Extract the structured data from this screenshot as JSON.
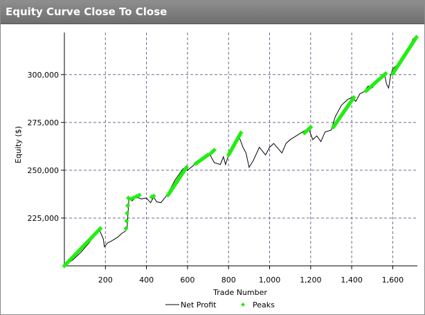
{
  "window": {
    "title": "Equity Curve Close To Close"
  },
  "chart_data": {
    "type": "line",
    "xlabel": "Trade Number",
    "ylabel": "Equity ($)",
    "xlim": [
      0,
      1720
    ],
    "ylim": [
      200000,
      322000
    ],
    "x_ticks": [
      200,
      400,
      600,
      800,
      1000,
      1200,
      1400,
      1600
    ],
    "x_tick_labels": [
      "200",
      "400",
      "600",
      "800",
      "1,000",
      "1,200",
      "1,400",
      "1,600"
    ],
    "y_ticks": [
      225000,
      250000,
      275000,
      300000
    ],
    "y_tick_labels": [
      "225,000",
      "250,000",
      "275,000",
      "300,000"
    ],
    "grid": true,
    "legend": {
      "placement": "bottom",
      "entries": [
        "Net Profit",
        "Peaks"
      ]
    },
    "colors": {
      "net_profit": "#000000",
      "peaks": "#22ee11"
    },
    "series": [
      {
        "name": "Net Profit",
        "x": [
          0,
          40,
          80,
          120,
          170,
          190,
          195,
          210,
          230,
          260,
          280,
          295,
          302,
          306,
          315,
          330,
          350,
          375,
          400,
          420,
          435,
          450,
          470,
          500,
          540,
          580,
          600,
          640,
          680,
          710,
          730,
          760,
          775,
          785,
          800,
          815,
          835,
          850,
          870,
          885,
          900,
          920,
          950,
          980,
          1000,
          1020,
          1060,
          1080,
          1100,
          1130,
          1160,
          1190,
          1210,
          1230,
          1250,
          1270,
          1300,
          1320,
          1350,
          1380,
          1400,
          1420,
          1440,
          1460,
          1480,
          1500,
          1540,
          1560,
          1570,
          1580,
          1590,
          1600,
          1620,
          1650,
          1680,
          1700
        ],
        "y": [
          200000,
          203000,
          207000,
          212000,
          219000,
          214000,
          210000,
          212000,
          213000,
          215000,
          217000,
          218000,
          219000,
          220000,
          236000,
          234000,
          236000,
          235000,
          235500,
          233000,
          236000,
          233500,
          233000,
          237000,
          245000,
          251000,
          250000,
          253500,
          256500,
          258000,
          254000,
          253000,
          257000,
          253000,
          258000,
          260000,
          266000,
          268000,
          262000,
          259000,
          251500,
          255000,
          262000,
          258000,
          262000,
          264000,
          259000,
          264000,
          266000,
          268000,
          270000,
          272000,
          266000,
          268000,
          265000,
          270000,
          271000,
          278000,
          284000,
          287000,
          288000,
          286000,
          290000,
          291000,
          294000,
          293000,
          299000,
          300000,
          295000,
          293000,
          300000,
          303000,
          305000,
          309000,
          314000,
          319000
        ]
      },
      {
        "name": "Peaks",
        "segments": [
          {
            "x_start": 0,
            "x_end": 175,
            "y_start": 200000,
            "y_end": 219500,
            "count": 42
          },
          {
            "x_start": 300,
            "x_end": 312,
            "y_start": 219500,
            "y_end": 235500,
            "count": 5
          },
          {
            "x_start": 325,
            "x_end": 365,
            "y_start": 235000,
            "y_end": 237000,
            "count": 4
          },
          {
            "x_start": 425,
            "x_end": 435,
            "y_start": 236000,
            "y_end": 236500,
            "count": 2
          },
          {
            "x_start": 505,
            "x_end": 595,
            "y_start": 237000,
            "y_end": 251500,
            "count": 20
          },
          {
            "x_start": 640,
            "x_end": 700,
            "y_start": 253500,
            "y_end": 258000,
            "count": 10
          },
          {
            "x_start": 715,
            "x_end": 730,
            "y_start": 259000,
            "y_end": 260500,
            "count": 3
          },
          {
            "x_start": 800,
            "x_end": 860,
            "y_start": 258000,
            "y_end": 269500,
            "count": 14
          },
          {
            "x_start": 1170,
            "x_end": 1200,
            "y_start": 269500,
            "y_end": 272500,
            "count": 6
          },
          {
            "x_start": 1310,
            "x_end": 1410,
            "y_start": 272500,
            "y_end": 288000,
            "count": 22
          },
          {
            "x_start": 1470,
            "x_end": 1565,
            "y_start": 291500,
            "y_end": 300500,
            "count": 18
          },
          {
            "x_start": 1600,
            "x_end": 1715,
            "y_start": 300500,
            "y_end": 319500,
            "count": 26
          }
        ]
      }
    ]
  }
}
